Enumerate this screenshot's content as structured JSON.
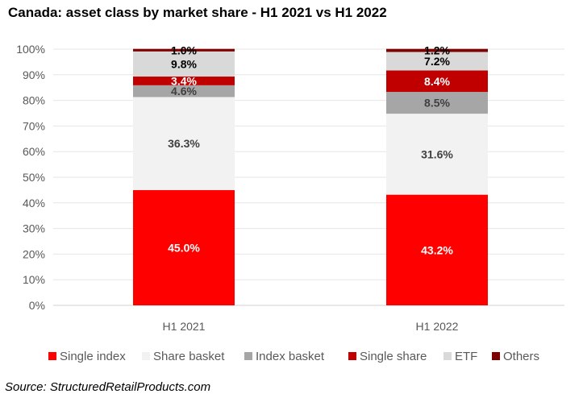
{
  "source": "Source: StructuredRetailProducts.com",
  "chart_data": {
    "type": "bar",
    "stacked": true,
    "title": "Canada: asset class by market share - H1 2021 vs H1 2022",
    "categories": [
      "H1 2021",
      "H1 2022"
    ],
    "ylim": [
      0,
      100
    ],
    "yticks": [
      "0%",
      "10%",
      "20%",
      "30%",
      "40%",
      "50%",
      "60%",
      "70%",
      "80%",
      "90%",
      "100%"
    ],
    "grid": true,
    "legend_position": "bottom",
    "series": [
      {
        "name": "Single index",
        "values": [
          45.0,
          43.2
        ],
        "labels": [
          "45.0%",
          "43.2%"
        ],
        "color": "#ff0000",
        "label_color": "#ffffff"
      },
      {
        "name": "Share basket",
        "values": [
          36.3,
          31.6
        ],
        "labels": [
          "36.3%",
          "31.6%"
        ],
        "color": "#f2f2f2",
        "label_color": "#404040"
      },
      {
        "name": "Index basket",
        "values": [
          4.6,
          8.5
        ],
        "labels": [
          "4.6%",
          "8.5%"
        ],
        "color": "#a6a6a6",
        "label_color": "#404040"
      },
      {
        "name": "Single share",
        "values": [
          3.4,
          8.4
        ],
        "labels": [
          "3.4%",
          "8.4%"
        ],
        "color": "#c00000",
        "label_color": "#ffffff"
      },
      {
        "name": "ETF",
        "values": [
          9.8,
          7.2
        ],
        "labels": [
          "9.8%",
          "7.2%"
        ],
        "color": "#d9d9d9",
        "label_color": "#000000"
      },
      {
        "name": "Others",
        "values": [
          1.0,
          1.2
        ],
        "labels": [
          "1.0%",
          "1.2%"
        ],
        "color": "#7f0000",
        "label_color": "#000000"
      }
    ]
  }
}
